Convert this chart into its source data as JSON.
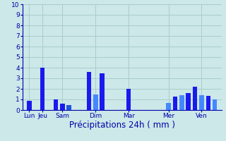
{
  "xlabel": "Précipitations 24h ( mm )",
  "background_color": "#cce8e8",
  "grid_color": "#aacccc",
  "ylim": [
    0,
    10
  ],
  "yticks": [
    0,
    1,
    2,
    3,
    4,
    5,
    6,
    7,
    8,
    9,
    10
  ],
  "bars": [
    {
      "x": 1,
      "height": 0.9,
      "color": "#1a1aee"
    },
    {
      "x": 3,
      "height": 4.0,
      "color": "#1a1aee"
    },
    {
      "x": 5,
      "height": 1.0,
      "color": "#1a1aee"
    },
    {
      "x": 6,
      "height": 0.6,
      "color": "#1a1aee"
    },
    {
      "x": 7,
      "height": 0.5,
      "color": "#2255dd"
    },
    {
      "x": 10,
      "height": 3.6,
      "color": "#1a1aee"
    },
    {
      "x": 11,
      "height": 1.5,
      "color": "#4488ff"
    },
    {
      "x": 12,
      "height": 3.5,
      "color": "#1a1aee"
    },
    {
      "x": 16,
      "height": 2.0,
      "color": "#1a1aee"
    },
    {
      "x": 22,
      "height": 0.7,
      "color": "#4488ff"
    },
    {
      "x": 23,
      "height": 1.3,
      "color": "#1a1aee"
    },
    {
      "x": 24,
      "height": 1.4,
      "color": "#4488ff"
    },
    {
      "x": 25,
      "height": 1.6,
      "color": "#1a1aee"
    },
    {
      "x": 26,
      "height": 2.2,
      "color": "#1a1aee"
    },
    {
      "x": 27,
      "height": 1.4,
      "color": "#4488ff"
    },
    {
      "x": 28,
      "height": 1.35,
      "color": "#1a1aee"
    },
    {
      "x": 29,
      "height": 1.0,
      "color": "#4488ff"
    }
  ],
  "day_labels": [
    {
      "x": 1,
      "label": "Lun"
    },
    {
      "x": 3,
      "label": "Jeu"
    },
    {
      "x": 6,
      "label": "Sam"
    },
    {
      "x": 11,
      "label": "Dim"
    },
    {
      "x": 16,
      "label": "Mar"
    },
    {
      "x": 22,
      "label": "Mer"
    },
    {
      "x": 27,
      "label": "Ven"
    }
  ],
  "xlim": [
    0,
    30
  ],
  "bar_width": 0.7,
  "axis_color": "#0000aa",
  "tick_color": "#0000aa",
  "label_fontsize": 6.5,
  "xlabel_fontsize": 8.5
}
